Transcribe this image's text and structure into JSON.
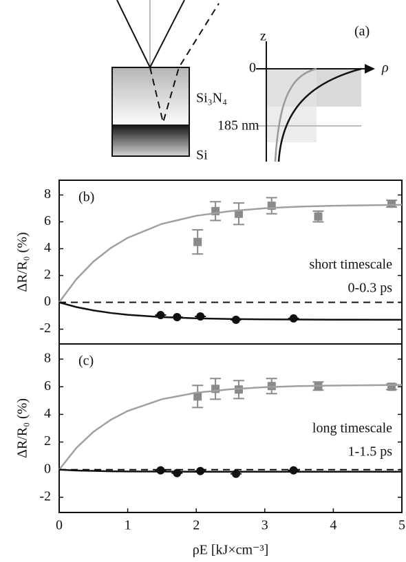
{
  "diagram": {
    "label": "(a)",
    "layer_top": "Si₃N₄",
    "layer_bottom": "Si",
    "depth": "185 nm",
    "axis_z": "z",
    "axis_zero": "0",
    "axis_rho": "ρ"
  },
  "chart_data": [
    {
      "type": "scatter",
      "annotation": "(b)",
      "text_lines": [
        "short timescale",
        "0-0.3 ps"
      ],
      "ylabel": "ΔR/R₀ (%)",
      "xlim": [
        0,
        5
      ],
      "ylim": [
        -3.1,
        9.1
      ],
      "yticks": [
        -2,
        0,
        2,
        4,
        6,
        8
      ],
      "hline": 0,
      "series": [
        {
          "marker": "square",
          "color": "#8a8a8a",
          "x": [
            2.02,
            2.28,
            2.62,
            3.1,
            3.78,
            4.85
          ],
          "values": [
            4.5,
            6.8,
            6.6,
            7.2,
            6.4,
            7.35
          ],
          "errors": [
            0.9,
            0.7,
            0.8,
            0.6,
            0.4,
            0.25
          ]
        },
        {
          "marker": "circle",
          "color": "#111111",
          "x": [
            1.48,
            1.72,
            2.06,
            2.58,
            3.42
          ],
          "values": [
            -0.95,
            -1.1,
            -1.05,
            -1.3,
            -1.2
          ]
        },
        {
          "marker": "line",
          "color": "#a0a0a0",
          "x": [
            0,
            0.25,
            0.5,
            0.75,
            1,
            1.5,
            2,
            2.5,
            3,
            3.5,
            4,
            5
          ],
          "values": [
            0,
            1.72,
            3.04,
            4.04,
            4.81,
            5.85,
            6.45,
            6.8,
            7.01,
            7.13,
            7.2,
            7.27
          ]
        },
        {
          "marker": "line",
          "color": "#111111",
          "x": [
            0,
            0.25,
            0.5,
            0.75,
            1,
            1.5,
            2,
            2.5,
            3,
            3.5,
            4,
            5
          ],
          "values": [
            0,
            -0.35,
            -0.6,
            -0.79,
            -0.93,
            -1.1,
            -1.19,
            -1.24,
            -1.27,
            -1.28,
            -1.29,
            -1.3
          ]
        }
      ]
    },
    {
      "type": "scatter",
      "annotation": "(c)",
      "text_lines": [
        "long timescale",
        "1-1.5 ps"
      ],
      "ylabel": "ΔR/R₀ (%)",
      "xlabel": "ρE [kJ×cm⁻³]",
      "xlim": [
        0,
        5
      ],
      "xticks": [
        0,
        1,
        2,
        3,
        4,
        5
      ],
      "ylim": [
        -3.1,
        9.1
      ],
      "yticks": [
        -2,
        0,
        2,
        4,
        6,
        8
      ],
      "hline": 0,
      "series": [
        {
          "marker": "square",
          "color": "#8a8a8a",
          "x": [
            2.02,
            2.28,
            2.62,
            3.1,
            3.78,
            4.85
          ],
          "values": [
            5.3,
            5.85,
            5.8,
            6.05,
            6.05,
            6.0
          ],
          "errors": [
            0.8,
            0.75,
            0.65,
            0.55,
            0.3,
            0.2
          ]
        },
        {
          "marker": "circle",
          "color": "#111111",
          "x": [
            1.48,
            1.72,
            2.06,
            2.58,
            3.42
          ],
          "values": [
            -0.05,
            -0.25,
            -0.1,
            -0.3,
            -0.05
          ]
        },
        {
          "marker": "line",
          "color": "#a0a0a0",
          "x": [
            0,
            0.25,
            0.5,
            0.75,
            1,
            1.5,
            2,
            2.5,
            3,
            3.5,
            4,
            5
          ],
          "values": [
            0,
            1.57,
            2.74,
            3.6,
            4.25,
            5.1,
            5.57,
            5.82,
            5.97,
            6.05,
            6.09,
            6.13
          ]
        },
        {
          "marker": "line",
          "color": "#111111",
          "x": [
            0,
            0.25,
            0.5,
            0.75,
            1,
            1.5,
            2,
            2.5,
            3,
            3.5,
            4,
            5
          ],
          "values": [
            0,
            -0.06,
            -0.09,
            -0.12,
            -0.13,
            -0.14,
            -0.15,
            -0.15,
            -0.15,
            -0.15,
            -0.15,
            -0.15
          ]
        }
      ]
    }
  ]
}
